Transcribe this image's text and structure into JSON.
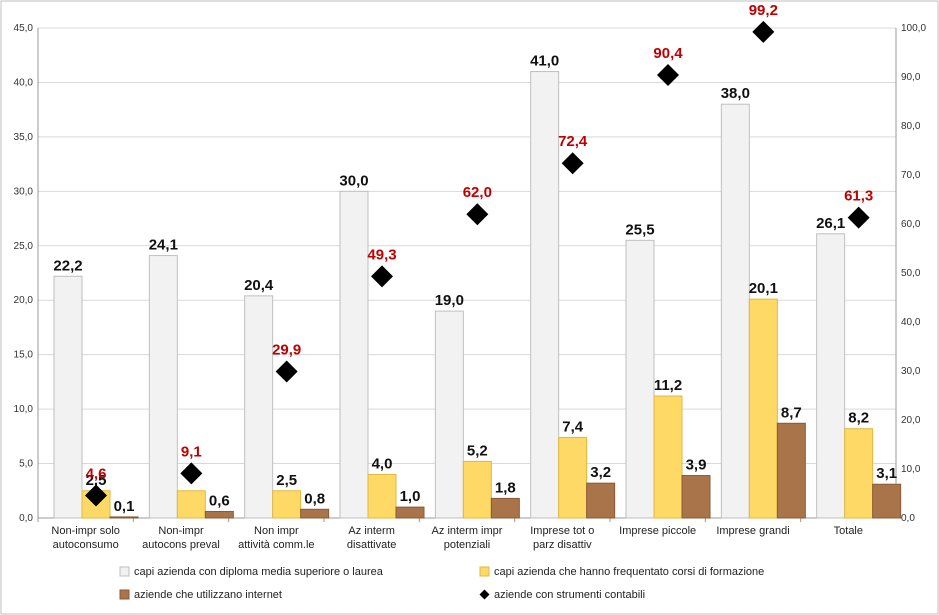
{
  "chart_data": {
    "type": "bar",
    "categories": [
      [
        "Non-impr solo",
        "autoconsumo"
      ],
      [
        "Non-impr",
        "autocons preval"
      ],
      [
        "Non impr",
        "attività comm.le"
      ],
      [
        "Az interm",
        "disattivate"
      ],
      [
        "Az interm impr",
        "potenziali"
      ],
      [
        "Imprese tot o",
        "parz disattiv"
      ],
      [
        "Imprese piccole"
      ],
      [
        "Imprese grandi"
      ],
      [
        "Totale"
      ]
    ],
    "left_axis": {
      "min": 0,
      "max": 45,
      "step": 5,
      "ticks": [
        "0,0",
        "5,0",
        "10,0",
        "15,0",
        "20,0",
        "25,0",
        "30,0",
        "35,0",
        "40,0",
        "45,0"
      ]
    },
    "right_axis": {
      "min": 0,
      "max": 100,
      "step": 10,
      "ticks": [
        "0,0",
        "10,0",
        "20,0",
        "30,0",
        "40,0",
        "50,0",
        "60,0",
        "70,0",
        "80,0",
        "90,0",
        "100,0"
      ]
    },
    "series": [
      {
        "name": "capi azienda con diploma media superiore o laurea",
        "axis": "left",
        "kind": "bar",
        "color": "#f2f2f2",
        "stroke": "#bfbfbf",
        "values": [
          22.2,
          24.1,
          20.4,
          30.0,
          19.0,
          41.0,
          25.5,
          38.0,
          26.1
        ],
        "labels": [
          "22,2",
          "24,1",
          "20,4",
          "30,0",
          "19,0",
          "41,0",
          "25,5",
          "38,0",
          "26,1"
        ]
      },
      {
        "name": "capi azienda che hanno frequentato corsi di formazione",
        "axis": "left",
        "kind": "bar",
        "color": "#ffd966",
        "stroke": "#e0b840",
        "values": [
          2.5,
          2.5,
          2.5,
          4.0,
          5.2,
          7.4,
          11.2,
          20.1,
          8.2
        ],
        "labels": [
          "2,5",
          "",
          "2,5",
          "4,0",
          "5,2",
          "7,4",
          "11,2",
          "20,1",
          "8,2"
        ]
      },
      {
        "name": "aziende che utilizzano internet",
        "axis": "left",
        "kind": "bar",
        "color": "#a9744a",
        "stroke": "#8a5a35",
        "values": [
          0.1,
          0.6,
          0.8,
          1.0,
          1.8,
          3.2,
          3.9,
          8.7,
          3.1
        ],
        "labels": [
          "0,1",
          "0,6",
          "0,8",
          "1,0",
          "1,8",
          "3,2",
          "3,9",
          "8,7",
          "3,1"
        ]
      },
      {
        "name": "aziende con strumenti contabili",
        "axis": "right",
        "kind": "scatter",
        "color": "#000000",
        "label_color": "#c00000",
        "values": [
          4.6,
          9.1,
          29.9,
          49.3,
          62.0,
          72.4,
          90.4,
          99.2,
          61.3
        ],
        "labels": [
          "4,6",
          "9,1",
          "29,9",
          "49,3",
          "62,0",
          "72,4",
          "90,4",
          "99,2",
          "61,3"
        ]
      }
    ],
    "legend": [
      "capi azienda con diploma media superiore o laurea",
      "capi azienda che hanno frequentato corsi di formazione",
      "aziende che utilizzano internet",
      "aziende con strumenti contabili"
    ],
    "legend_position": "bottom",
    "grid": true
  }
}
